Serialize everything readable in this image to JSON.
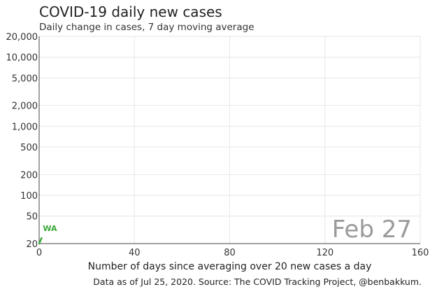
{
  "chart_data": {
    "type": "line",
    "title": "COVID-19 daily new cases",
    "subtitle": "Daily change in cases, 7 day moving average",
    "xlabel": "Number of days since averaging over 20 new cases a day",
    "ylabel": "",
    "xlim": [
      0,
      160
    ],
    "ylim": [
      20,
      20000
    ],
    "yscale": "log",
    "x_ticks": [
      0,
      40,
      80,
      120,
      160
    ],
    "x_tick_labels": [
      "0",
      "40",
      "80",
      "120",
      "160"
    ],
    "y_ticks": [
      20,
      50,
      100,
      200,
      500,
      1000,
      2000,
      5000,
      10000,
      20000
    ],
    "y_tick_labels": [
      "20",
      "50",
      "100",
      "200",
      "500",
      "1,000",
      "2,000",
      "5,000",
      "10,000",
      "20,000"
    ],
    "grid": true,
    "date_label": "Feb 27",
    "source": "Data as of Jul 25, 2020. Source: The COVID Tracking Project, @benbakkum.",
    "series": [
      {
        "name": "WA",
        "color": "#3aa83a",
        "x": [
          0,
          1
        ],
        "y": [
          20,
          24
        ]
      }
    ]
  }
}
